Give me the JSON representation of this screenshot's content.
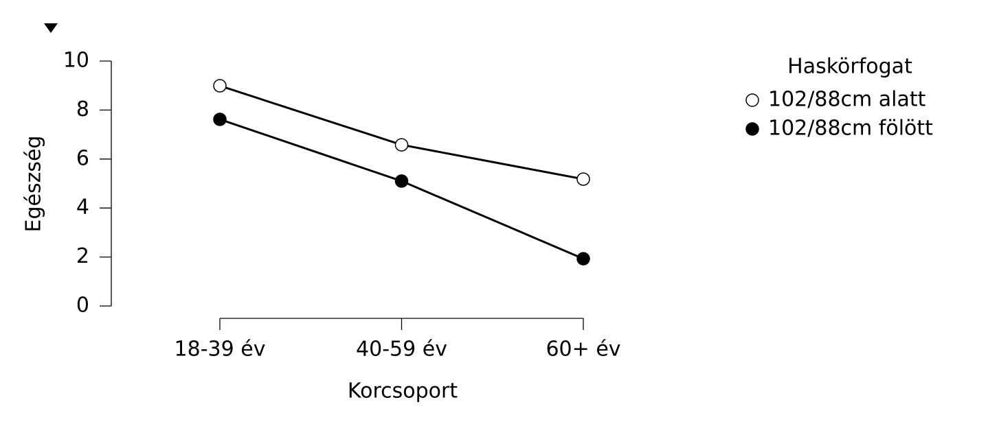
{
  "chart_data": {
    "type": "line",
    "x_label": "Korcsoport",
    "y_label": "Egészség",
    "categories": [
      "18-39 év",
      "40-59 év",
      "60+ év"
    ],
    "series": [
      {
        "name": "102/88cm alatt",
        "color": "#ffffff",
        "values": [
          8.99,
          6.58,
          5.18
        ]
      },
      {
        "name": "102/88cm fölött",
        "color": "#000000",
        "values": [
          7.62,
          5.1,
          1.93
        ]
      }
    ],
    "legend_title": "Haskörfogat",
    "ylim": [
      0,
      10
    ],
    "yticks": [
      0,
      2,
      4,
      6,
      8,
      10
    ]
  }
}
